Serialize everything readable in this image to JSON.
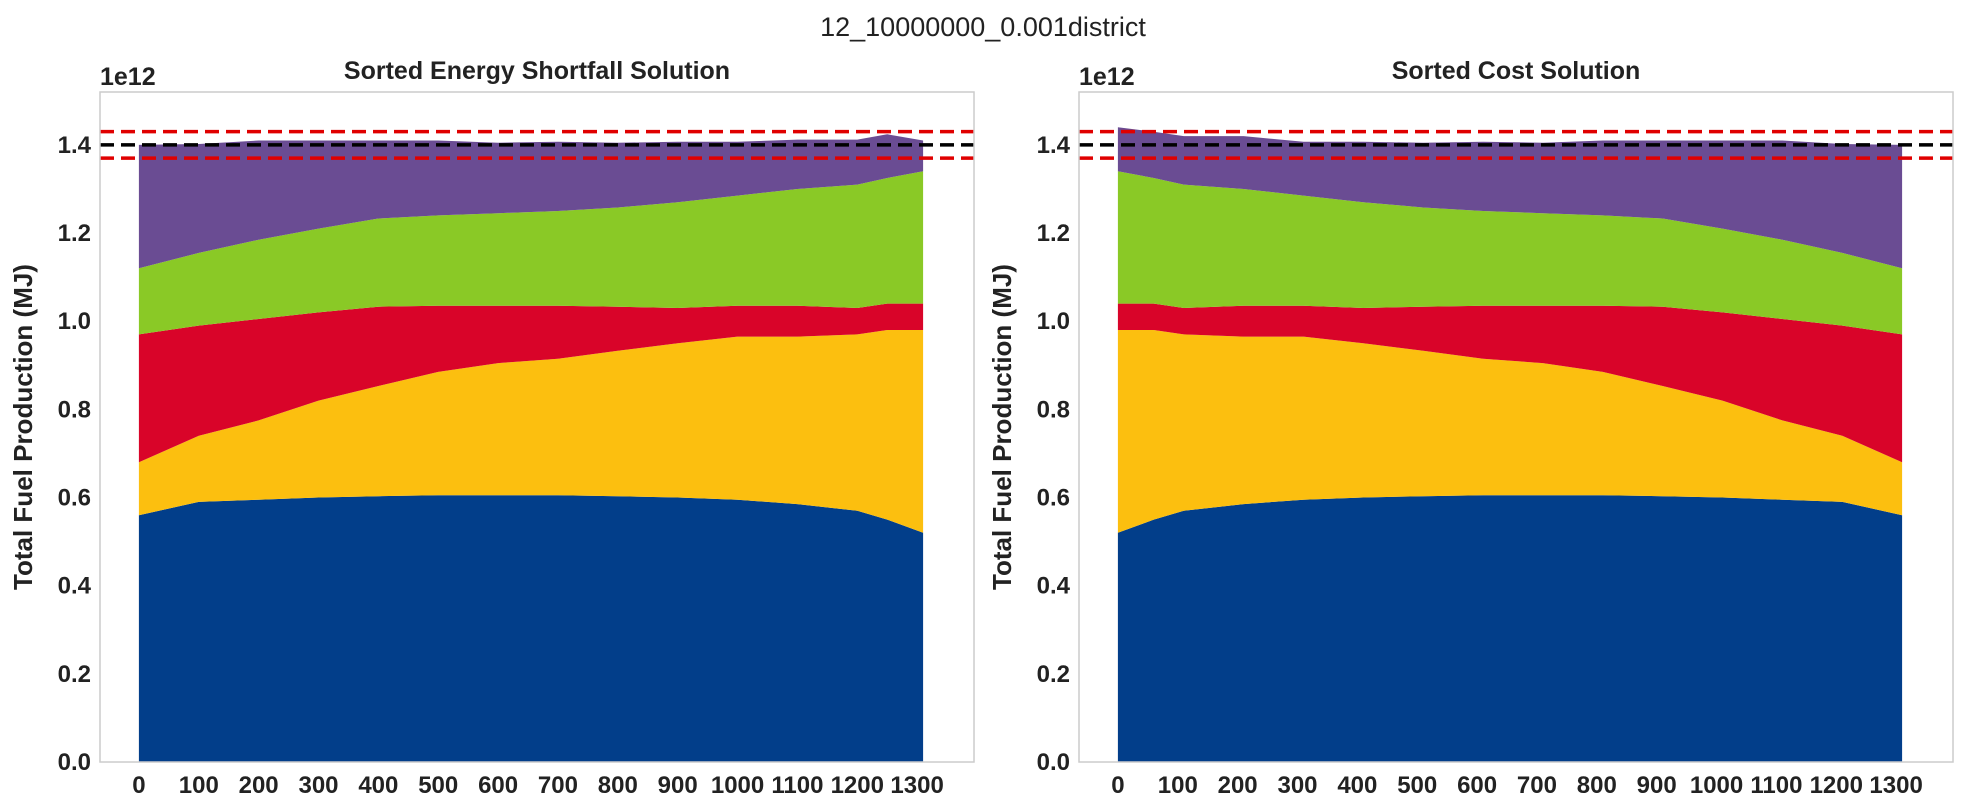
{
  "suptitle": "12_10000000_0.001district",
  "colors": {
    "series": [
      "#023e8a",
      "#fcbf0f",
      "#d90429",
      "#8ac926",
      "#6a4c93"
    ],
    "target_line": "#000000",
    "band_lines": "#e00000",
    "frame": "#cccccc",
    "text": "#222222"
  },
  "chart_data": [
    {
      "type": "area",
      "title": "Sorted Energy Shortfall Solution",
      "ylabel": "Total Fuel Production (MJ)",
      "xlabel": "",
      "offset_label": "1e12",
      "xlim": [
        -65,
        1395
      ],
      "ylim": [
        0.0,
        1.52
      ],
      "y_scale": 1000000000000.0,
      "grid": false,
      "legend": "none",
      "x_ticks": [
        0,
        100,
        200,
        300,
        400,
        500,
        600,
        700,
        800,
        900,
        1000,
        1100,
        1200,
        1300
      ],
      "y_ticks": [
        0.0,
        0.2,
        0.4,
        0.6,
        0.8,
        1.0,
        1.2,
        1.4
      ],
      "x": [
        0,
        100,
        200,
        300,
        400,
        500,
        600,
        700,
        800,
        900,
        1000,
        1100,
        1200,
        1250,
        1310
      ],
      "series": [
        {
          "values": [
            0.56,
            0.59,
            0.595,
            0.6,
            0.603,
            0.605,
            0.605,
            0.605,
            0.603,
            0.6,
            0.595,
            0.585,
            0.57,
            0.55,
            0.52
          ]
        },
        {
          "values": [
            0.12,
            0.15,
            0.18,
            0.22,
            0.25,
            0.28,
            0.3,
            0.31,
            0.33,
            0.35,
            0.37,
            0.38,
            0.4,
            0.43,
            0.46
          ]
        },
        {
          "values": [
            0.29,
            0.25,
            0.23,
            0.2,
            0.18,
            0.15,
            0.13,
            0.12,
            0.1,
            0.08,
            0.07,
            0.07,
            0.06,
            0.06,
            0.06
          ]
        },
        {
          "values": [
            0.15,
            0.165,
            0.18,
            0.19,
            0.2,
            0.205,
            0.21,
            0.215,
            0.225,
            0.24,
            0.25,
            0.265,
            0.28,
            0.285,
            0.3
          ]
        },
        {
          "values": [
            0.28,
            0.247,
            0.225,
            0.2,
            0.177,
            0.17,
            0.16,
            0.157,
            0.147,
            0.137,
            0.122,
            0.112,
            0.102,
            0.099,
            0.07
          ]
        }
      ],
      "hlines": [
        {
          "y": 1.4,
          "style": "dashed",
          "color": "#000000"
        },
        {
          "y": 1.43,
          "style": "dashed",
          "color": "#e00000"
        },
        {
          "y": 1.37,
          "style": "dashed",
          "color": "#e00000"
        }
      ]
    },
    {
      "type": "area",
      "title": "Sorted Cost Solution",
      "ylabel": "Total Fuel Production (MJ)",
      "xlabel": "",
      "offset_label": "1e12",
      "xlim": [
        -65,
        1395
      ],
      "ylim": [
        0.0,
        1.52
      ],
      "y_scale": 1000000000000.0,
      "grid": false,
      "legend": "none",
      "x_ticks": [
        0,
        100,
        200,
        300,
        400,
        500,
        600,
        700,
        800,
        900,
        1000,
        1100,
        1200,
        1300
      ],
      "y_ticks": [
        0.0,
        0.2,
        0.4,
        0.6,
        0.8,
        1.0,
        1.2,
        1.4
      ],
      "x": [
        0,
        60,
        110,
        210,
        310,
        410,
        510,
        610,
        710,
        810,
        910,
        1010,
        1110,
        1210,
        1310
      ],
      "series": [
        {
          "values": [
            0.52,
            0.55,
            0.57,
            0.585,
            0.595,
            0.6,
            0.603,
            0.605,
            0.605,
            0.605,
            0.603,
            0.6,
            0.595,
            0.59,
            0.56
          ]
        },
        {
          "values": [
            0.46,
            0.43,
            0.4,
            0.38,
            0.37,
            0.35,
            0.33,
            0.31,
            0.3,
            0.28,
            0.25,
            0.22,
            0.18,
            0.15,
            0.12
          ]
        },
        {
          "values": [
            0.06,
            0.06,
            0.06,
            0.07,
            0.07,
            0.08,
            0.1,
            0.12,
            0.13,
            0.15,
            0.18,
            0.2,
            0.23,
            0.25,
            0.29
          ]
        },
        {
          "values": [
            0.3,
            0.285,
            0.28,
            0.265,
            0.25,
            0.24,
            0.225,
            0.215,
            0.21,
            0.205,
            0.2,
            0.19,
            0.18,
            0.165,
            0.15
          ]
        },
        {
          "values": [
            0.1,
            0.105,
            0.11,
            0.12,
            0.122,
            0.137,
            0.147,
            0.157,
            0.16,
            0.17,
            0.177,
            0.2,
            0.225,
            0.247,
            0.28
          ]
        }
      ],
      "hlines": [
        {
          "y": 1.4,
          "style": "dashed",
          "color": "#000000"
        },
        {
          "y": 1.43,
          "style": "dashed",
          "color": "#e00000"
        },
        {
          "y": 1.37,
          "style": "dashed",
          "color": "#e00000"
        }
      ]
    }
  ]
}
